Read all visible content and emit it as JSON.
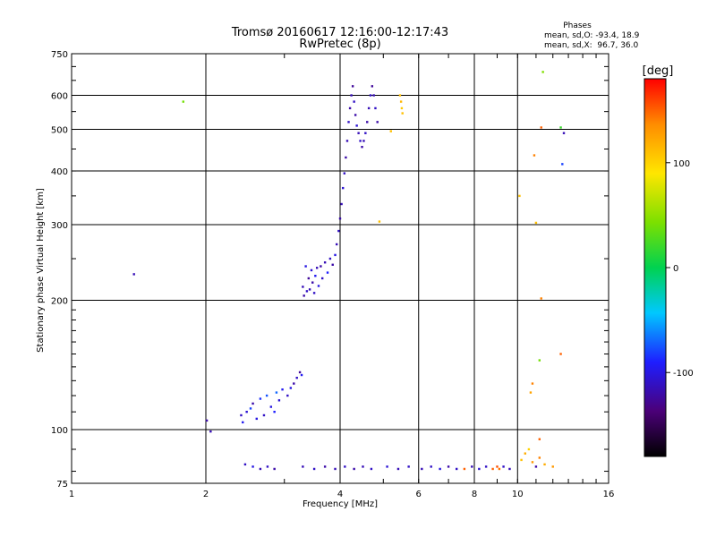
{
  "chart_data": {
    "type": "scatter",
    "title": "Tromsø 20160617 12:16:00-12:17:43",
    "subtitle": "RwPretec (8p)",
    "xlabel": "Frequency [MHz]",
    "ylabel": "Stationary phase Virtual Height [km]",
    "x_scale": "log",
    "y_scale": "log",
    "xlim": [
      1,
      16
    ],
    "ylim": [
      75,
      750
    ],
    "x_ticks": [
      1,
      2,
      4,
      6,
      8,
      10,
      16
    ],
    "y_ticks": [
      75,
      100,
      200,
      300,
      400,
      500,
      600,
      750
    ],
    "grid": true,
    "phases_info": {
      "title": "Phases",
      "line_o": "mean, sd,O: -93.4, 18.9",
      "line_x": "mean, sd,X:  96.7, 36.0"
    },
    "colorbar": {
      "label": "[deg]",
      "range": [
        -180,
        180
      ],
      "ticks": [
        100,
        0,
        -100
      ]
    },
    "points": [
      [
        1.38,
        230,
        -115
      ],
      [
        1.78,
        580,
        40
      ],
      [
        2.01,
        105,
        -120
      ],
      [
        2.05,
        99,
        -115
      ],
      [
        2.4,
        108,
        -110
      ],
      [
        2.42,
        104,
        -95
      ],
      [
        2.47,
        110,
        -105
      ],
      [
        2.52,
        112,
        -80
      ],
      [
        2.55,
        115,
        -120
      ],
      [
        2.6,
        106,
        -100
      ],
      [
        2.65,
        118,
        -85
      ],
      [
        2.7,
        108,
        -110
      ],
      [
        2.74,
        120,
        -75
      ],
      [
        2.8,
        113,
        -100
      ],
      [
        2.85,
        110,
        -90
      ],
      [
        2.88,
        122,
        -70
      ],
      [
        2.92,
        117,
        -105
      ],
      [
        2.97,
        124,
        -95
      ],
      [
        3.05,
        120,
        -110
      ],
      [
        3.1,
        125,
        -100
      ],
      [
        3.15,
        128,
        -120
      ],
      [
        3.2,
        132,
        -110
      ],
      [
        3.25,
        136,
        -125
      ],
      [
        3.28,
        134,
        -95
      ],
      [
        3.3,
        215,
        -115
      ],
      [
        3.32,
        205,
        -120
      ],
      [
        3.35,
        240,
        -100
      ],
      [
        3.37,
        210,
        -110
      ],
      [
        3.4,
        225,
        -125
      ],
      [
        3.42,
        212,
        -115
      ],
      [
        3.45,
        235,
        -105
      ],
      [
        3.47,
        220,
        -120
      ],
      [
        3.5,
        208,
        -110
      ],
      [
        3.52,
        228,
        -95
      ],
      [
        3.55,
        238,
        -115
      ],
      [
        3.58,
        216,
        -100
      ],
      [
        3.62,
        240,
        -120
      ],
      [
        3.65,
        225,
        -110
      ],
      [
        3.7,
        245,
        -115
      ],
      [
        3.75,
        232,
        -90
      ],
      [
        3.8,
        250,
        -110
      ],
      [
        3.85,
        242,
        -120
      ],
      [
        3.9,
        255,
        -100
      ],
      [
        3.93,
        270,
        -115
      ],
      [
        3.97,
        290,
        -110
      ],
      [
        4.0,
        310,
        -120
      ],
      [
        4.03,
        335,
        -115
      ],
      [
        4.06,
        365,
        -105
      ],
      [
        4.09,
        395,
        -110
      ],
      [
        4.12,
        430,
        -120
      ],
      [
        4.15,
        470,
        -115
      ],
      [
        4.18,
        520,
        -110
      ],
      [
        4.21,
        560,
        -120
      ],
      [
        4.24,
        600,
        -115
      ],
      [
        4.27,
        630,
        -125
      ],
      [
        4.3,
        580,
        -110
      ],
      [
        4.33,
        540,
        -120
      ],
      [
        4.36,
        510,
        -105
      ],
      [
        4.4,
        490,
        -115
      ],
      [
        4.44,
        470,
        -110
      ],
      [
        4.48,
        455,
        -120
      ],
      [
        4.52,
        470,
        -115
      ],
      [
        4.56,
        490,
        -110
      ],
      [
        4.6,
        520,
        -120
      ],
      [
        4.64,
        560,
        -115
      ],
      [
        4.68,
        600,
        -110
      ],
      [
        4.72,
        630,
        -125
      ],
      [
        4.76,
        600,
        -115
      ],
      [
        4.8,
        560,
        -110
      ],
      [
        4.85,
        520,
        -120
      ],
      [
        5.45,
        600,
        110
      ],
      [
        5.48,
        580,
        115
      ],
      [
        5.5,
        560,
        105
      ],
      [
        5.52,
        545,
        110
      ],
      [
        5.2,
        495,
        110
      ],
      [
        4.9,
        305,
        110
      ],
      [
        2.45,
        83,
        -110
      ],
      [
        2.55,
        82,
        -100
      ],
      [
        2.65,
        81,
        -115
      ],
      [
        2.75,
        82,
        -110
      ],
      [
        2.85,
        81,
        -120
      ],
      [
        3.3,
        82,
        -115
      ],
      [
        3.5,
        81,
        -110
      ],
      [
        3.7,
        82,
        -120
      ],
      [
        3.9,
        81,
        -115
      ],
      [
        4.1,
        82,
        -110
      ],
      [
        4.3,
        81,
        -120
      ],
      [
        4.5,
        82,
        -115
      ],
      [
        4.7,
        81,
        -110
      ],
      [
        5.1,
        82,
        -105
      ],
      [
        5.4,
        81,
        -115
      ],
      [
        5.7,
        82,
        -110
      ],
      [
        6.1,
        81,
        -115
      ],
      [
        6.4,
        82,
        -110
      ],
      [
        6.7,
        81,
        -100
      ],
      [
        7.0,
        82,
        -120
      ],
      [
        7.3,
        81,
        -110
      ],
      [
        7.6,
        81,
        150
      ],
      [
        7.9,
        82,
        -115
      ],
      [
        8.2,
        81,
        -105
      ],
      [
        8.5,
        82,
        -110
      ],
      [
        8.8,
        81,
        150
      ],
      [
        9.0,
        82,
        155
      ],
      [
        9.1,
        81,
        145
      ],
      [
        9.3,
        82,
        -110
      ],
      [
        9.6,
        81,
        -115
      ],
      [
        10.2,
        85,
        110
      ],
      [
        10.4,
        88,
        120
      ],
      [
        10.6,
        90,
        100
      ],
      [
        10.8,
        84,
        130
      ],
      [
        11.0,
        82,
        -120
      ],
      [
        11.2,
        86,
        140
      ],
      [
        11.5,
        83,
        120
      ],
      [
        12.0,
        82,
        130
      ],
      [
        10.7,
        122,
        125
      ],
      [
        10.8,
        128,
        140
      ],
      [
        11.2,
        145,
        40
      ],
      [
        11.0,
        303,
        110
      ],
      [
        10.9,
        435,
        140
      ],
      [
        11.3,
        505,
        150
      ],
      [
        11.4,
        680,
        45
      ],
      [
        11.3,
        202,
        140
      ],
      [
        10.1,
        350,
        110
      ],
      [
        12.5,
        150,
        150
      ],
      [
        12.7,
        490,
        -115
      ],
      [
        12.6,
        415,
        -80
      ],
      [
        12.5,
        505,
        20
      ],
      [
        11.2,
        95,
        150
      ]
    ]
  }
}
